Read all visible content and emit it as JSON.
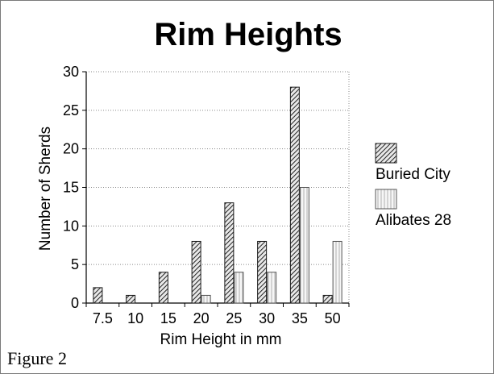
{
  "chart_data": {
    "type": "bar",
    "title": "Rim Heights",
    "xlabel": "Rim Height in mm",
    "ylabel": "Number of Sherds",
    "categories": [
      "7.5",
      "10",
      "15",
      "20",
      "25",
      "30",
      "35",
      "50"
    ],
    "series": [
      {
        "name": "Buried City",
        "values": [
          2,
          1,
          4,
          8,
          13,
          8,
          28,
          1
        ],
        "pattern": "diagonal-hatch",
        "color": "#333333"
      },
      {
        "name": "Alibates 28",
        "values": [
          0,
          0,
          0,
          1,
          4,
          4,
          15,
          8
        ],
        "pattern": "vertical-hatch",
        "color": "#bfbfbf"
      }
    ],
    "ylim": [
      0,
      30
    ],
    "yticks": [
      0,
      5,
      10,
      15,
      20,
      25,
      30
    ],
    "grid": "horizontal dotted",
    "legend_position": "right"
  },
  "caption": "Figure 2"
}
